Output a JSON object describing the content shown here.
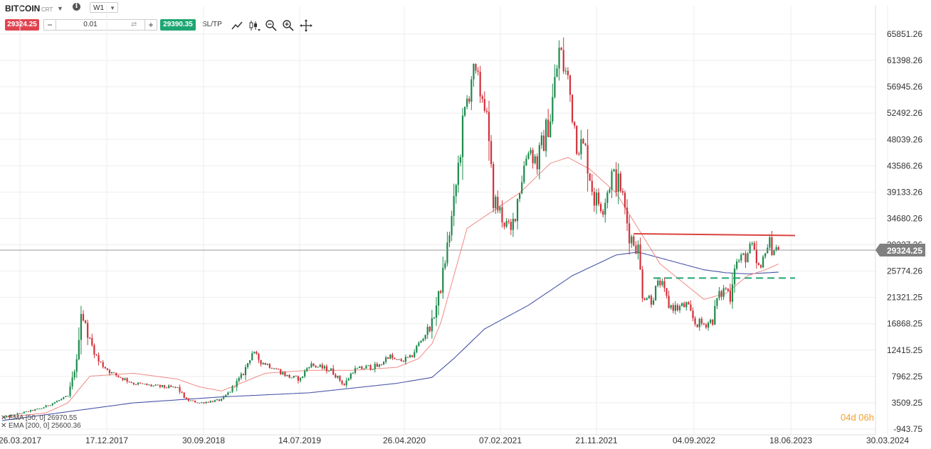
{
  "toolbar": {
    "symbol": "BITCOIN",
    "symbol_sub": "CRT",
    "timeframe": "W1",
    "sell_price": "29324.25",
    "quantity": "0.01",
    "buy_price": "29390.35",
    "sltp_label": "SL/TP",
    "icons": [
      "caret-down-icon",
      "info-icon",
      "swap-icon",
      "line-chart-icon",
      "candlestick-icon",
      "zoom-out-icon",
      "zoom-in-icon",
      "crosshair-icon"
    ]
  },
  "countdown": "04d 06h",
  "colors": {
    "bull": "#1d8a4c",
    "bear": "#d2303a",
    "ema50": "#f08a84",
    "ema200": "#4a55a8",
    "resistance": "#d9443f",
    "support": "#1ea672",
    "price_tag": "#808080"
  },
  "chart_data": {
    "type": "candlestick",
    "timeframe": "W1",
    "y_ticks": [
      65851.26,
      61398.26,
      56945.26,
      52492.26,
      48039.26,
      43586.26,
      39133.26,
      34680.26,
      30227.26,
      25774.26,
      21321.25,
      16868.25,
      12415.25,
      7962.25,
      3509.25,
      -943.75
    ],
    "x_ticks": [
      "26.03.2017",
      "17.12.2017",
      "30.09.2018",
      "14.07.2019",
      "26.04.2020",
      "07.02.2021",
      "21.11.2021",
      "04.09.2022",
      "18.06.2023",
      "30.03.2024"
    ],
    "current_price": "29324.25",
    "legend": [
      {
        "label": "EMA [50, 0]",
        "value": "26970.55"
      },
      {
        "label": "EMA [200, 0]",
        "value": "25600.36"
      }
    ],
    "price_anchors": [
      [
        0,
        1000
      ],
      [
        18,
        2600
      ],
      [
        30,
        4600
      ],
      [
        34,
        10500
      ],
      [
        36,
        19000
      ],
      [
        40,
        14000
      ],
      [
        44,
        10500
      ],
      [
        50,
        8500
      ],
      [
        60,
        6800
      ],
      [
        70,
        6300
      ],
      [
        80,
        6000
      ],
      [
        84,
        4000
      ],
      [
        90,
        3500
      ],
      [
        100,
        4000
      ],
      [
        104,
        5500
      ],
      [
        110,
        8500
      ],
      [
        114,
        12000
      ],
      [
        118,
        10500
      ],
      [
        124,
        9500
      ],
      [
        130,
        8000
      ],
      [
        136,
        7500
      ],
      [
        140,
        10000
      ],
      [
        150,
        9000
      ],
      [
        156,
        6500
      ],
      [
        160,
        9000
      ],
      [
        166,
        9500
      ],
      [
        172,
        9700
      ],
      [
        176,
        11500
      ],
      [
        180,
        10500
      ],
      [
        186,
        11000
      ],
      [
        190,
        13500
      ],
      [
        196,
        17000
      ],
      [
        200,
        23000
      ],
      [
        203,
        30000
      ],
      [
        206,
        37000
      ],
      [
        210,
        50000
      ],
      [
        214,
        59000
      ],
      [
        220,
        55000
      ],
      [
        224,
        38000
      ],
      [
        228,
        35000
      ],
      [
        232,
        32000
      ],
      [
        236,
        40000
      ],
      [
        240,
        47000
      ],
      [
        244,
        44000
      ],
      [
        250,
        52000
      ],
      [
        254,
        63000
      ],
      [
        258,
        58000
      ],
      [
        262,
        48000
      ],
      [
        266,
        46000
      ],
      [
        270,
        38000
      ],
      [
        274,
        37000
      ],
      [
        278,
        42000
      ],
      [
        282,
        40000
      ],
      [
        286,
        32000
      ],
      [
        290,
        29500
      ],
      [
        292,
        22000
      ],
      [
        296,
        21000
      ],
      [
        300,
        24000
      ],
      [
        304,
        20000
      ],
      [
        308,
        19500
      ],
      [
        312,
        20000
      ],
      [
        316,
        17000
      ],
      [
        320,
        16800
      ],
      [
        324,
        17500
      ],
      [
        326,
        21000
      ],
      [
        330,
        23000
      ],
      [
        332,
        21500
      ],
      [
        334,
        27000
      ],
      [
        338,
        28000
      ],
      [
        342,
        29500
      ],
      [
        344,
        27000
      ],
      [
        346,
        25500
      ],
      [
        348,
        30000
      ],
      [
        350,
        30200
      ],
      [
        354,
        29324
      ]
    ],
    "ema50_anchors": [
      [
        0,
        1000
      ],
      [
        20,
        1800
      ],
      [
        30,
        3500
      ],
      [
        40,
        8000
      ],
      [
        60,
        8500
      ],
      [
        80,
        7500
      ],
      [
        90,
        6200
      ],
      [
        100,
        5500
      ],
      [
        110,
        7000
      ],
      [
        120,
        8500
      ],
      [
        140,
        9000
      ],
      [
        160,
        9000
      ],
      [
        180,
        9500
      ],
      [
        190,
        11000
      ],
      [
        196,
        13500
      ],
      [
        200,
        17000
      ],
      [
        206,
        25000
      ],
      [
        212,
        33000
      ],
      [
        220,
        35000
      ],
      [
        236,
        39000
      ],
      [
        250,
        44000
      ],
      [
        258,
        45000
      ],
      [
        268,
        43000
      ],
      [
        280,
        39000
      ],
      [
        290,
        33000
      ],
      [
        300,
        27000
      ],
      [
        310,
        24000
      ],
      [
        320,
        21000
      ],
      [
        330,
        22000
      ],
      [
        340,
        25000
      ],
      [
        348,
        26000
      ],
      [
        354,
        26970
      ]
    ],
    "ema200_anchors": [
      [
        0,
        500
      ],
      [
        30,
        2000
      ],
      [
        60,
        3500
      ],
      [
        100,
        4500
      ],
      [
        140,
        5200
      ],
      [
        180,
        6800
      ],
      [
        196,
        7800
      ],
      [
        206,
        11000
      ],
      [
        220,
        16000
      ],
      [
        240,
        20000
      ],
      [
        260,
        25000
      ],
      [
        280,
        28500
      ],
      [
        290,
        29000
      ],
      [
        300,
        28000
      ],
      [
        310,
        27000
      ],
      [
        320,
        26000
      ],
      [
        330,
        25500
      ],
      [
        340,
        25300
      ],
      [
        354,
        25600
      ]
    ],
    "resistance_line": {
      "start_week": 288,
      "end_week": 354,
      "start_price": 32100,
      "end_price": 31800
    },
    "support_line": {
      "start_week": 297,
      "end_week": 354,
      "price": 24600
    }
  }
}
